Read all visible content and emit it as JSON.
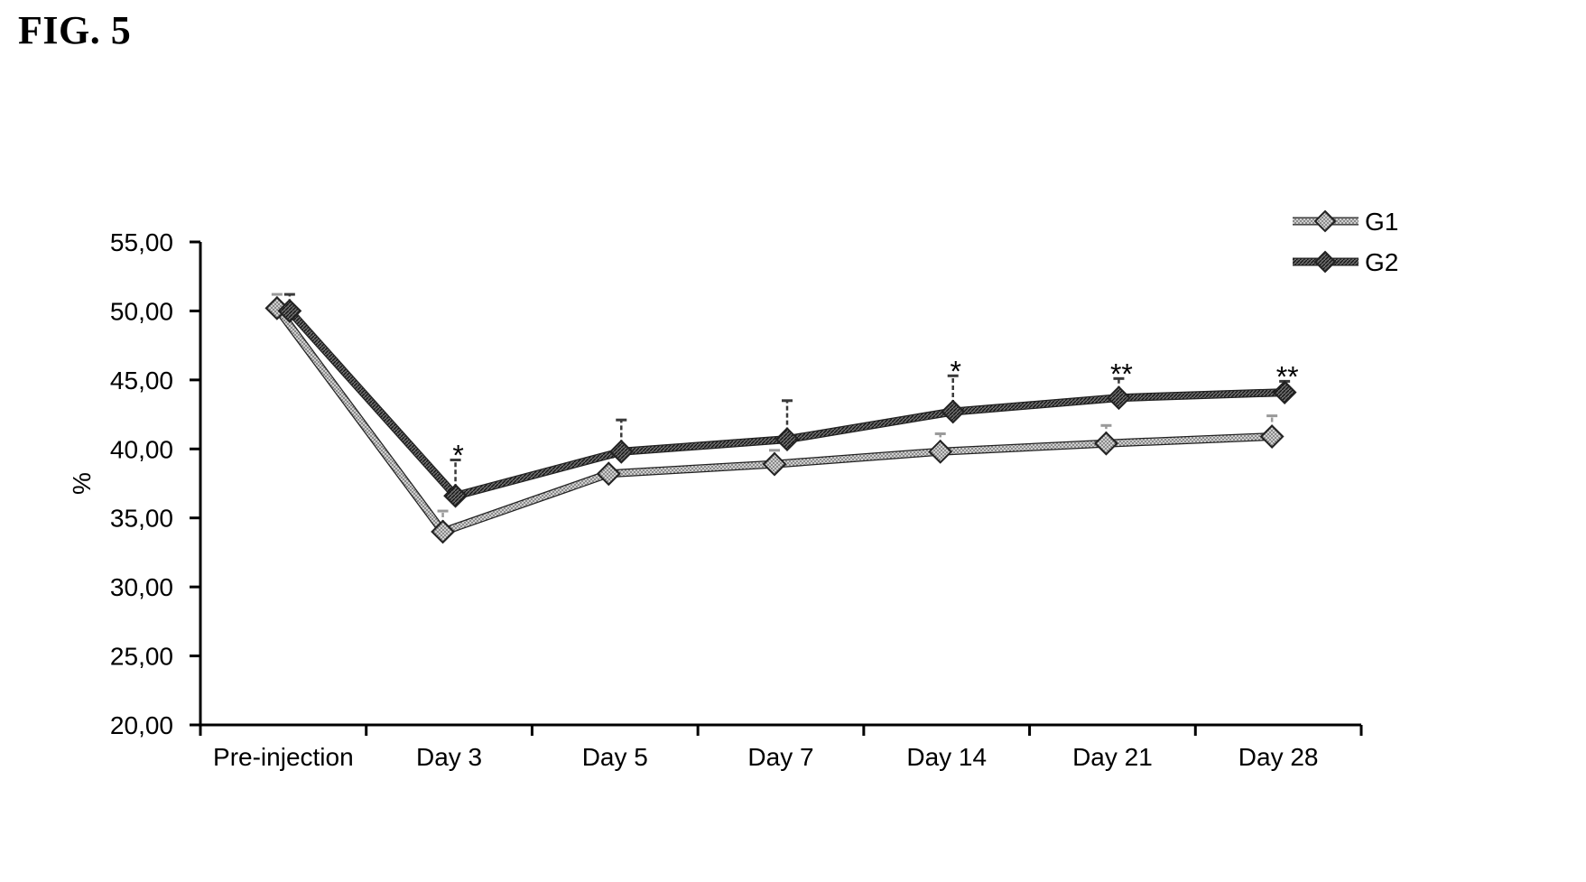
{
  "figure_label": "FIG. 5",
  "chart_data": {
    "type": "line",
    "ylabel": "%",
    "ylim": [
      20,
      55
    ],
    "yticks": [
      20,
      25,
      30,
      35,
      40,
      45,
      50,
      55
    ],
    "ytick_labels": [
      "20,00",
      "25,00",
      "30,00",
      "35,00",
      "40,00",
      "45,00",
      "50,00",
      "55,00"
    ],
    "categories": [
      "Pre-injection",
      "Day 3",
      "Day 5",
      "Day 7",
      "Day 14",
      "Day 21",
      "Day 28"
    ],
    "legend_position": "top-right",
    "grid": false,
    "series": [
      {
        "name": "G1",
        "values": [
          50.2,
          34.0,
          38.2,
          38.9,
          39.8,
          40.4,
          40.9
        ],
        "error": [
          1.0,
          1.5,
          1.2,
          1.0,
          1.3,
          1.3,
          1.5
        ],
        "color": "#9a9a9a"
      },
      {
        "name": "G2",
        "values": [
          50.0,
          36.6,
          39.8,
          40.7,
          42.7,
          43.7,
          44.1
        ],
        "error": [
          1.2,
          2.6,
          2.3,
          2.8,
          2.6,
          1.4,
          0.8
        ],
        "color": "#3a3a3a"
      }
    ],
    "annotations": [
      {
        "category": "Day 3",
        "text": "*"
      },
      {
        "category": "Day 14",
        "text": "*"
      },
      {
        "category": "Day 21",
        "text": "**"
      },
      {
        "category": "Day 28",
        "text": "**"
      }
    ]
  }
}
